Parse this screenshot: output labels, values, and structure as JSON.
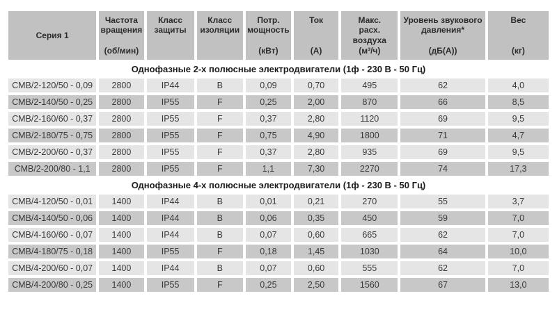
{
  "colors": {
    "page_bg": "#ffffff",
    "header_bg": "#c1c1c1",
    "row_light": "#e5e5e5",
    "row_dark": "#c8c8c8",
    "header_text": "#2b2b2b",
    "section_text": "#1c1c1c",
    "cell_text": "#3a3a3a"
  },
  "table": {
    "columns": [
      {
        "label": "Серия 1",
        "unit": ""
      },
      {
        "label": "Частота\nвращения",
        "unit": "(об/мин)"
      },
      {
        "label": "Класс\nзащиты",
        "unit": ""
      },
      {
        "label": "Класс\nизоляции",
        "unit": ""
      },
      {
        "label": "Потр.\nмощность",
        "unit": "(кВт)"
      },
      {
        "label": "Ток",
        "unit": "(А)"
      },
      {
        "label": "Макс.\nрасх.\nвоздуха",
        "unit": "(м³/ч)"
      },
      {
        "label": "Уровень звукового\nдавления*",
        "unit": "(дБ(А))"
      },
      {
        "label": "Вес",
        "unit": "(кг)"
      }
    ],
    "sections": [
      {
        "title": "Однофазные 2-х полюсные электродвигатели (1ф - 230 В - 50 Гц)",
        "rows": [
          [
            "СМВ/2-120/50 - 0,09",
            "2800",
            "IP44",
            "B",
            "0,09",
            "0,70",
            "495",
            "62",
            "4,0"
          ],
          [
            "СМВ/2-140/50 - 0,25",
            "2800",
            "IP55",
            "F",
            "0,25",
            "2,00",
            "870",
            "66",
            "8,5"
          ],
          [
            "СМВ/2-160/60 - 0,37",
            "2800",
            "IP55",
            "F",
            "0,37",
            "2,80",
            "1120",
            "69",
            "9,5"
          ],
          [
            "СМВ/2-180/75 - 0,75",
            "2800",
            "IP55",
            "F",
            "0,75",
            "4,90",
            "1800",
            "71",
            "4,7"
          ],
          [
            "СМВ/2-200/60 - 0,37",
            "2800",
            "IP55",
            "F",
            "0,37",
            "2,80",
            "935",
            "69",
            "9,5"
          ],
          [
            "СМВ/2-200/80 - 1,1",
            "2800",
            "IP55",
            "F",
            "1,1",
            "7,30",
            "2270",
            "74",
            "17,3"
          ]
        ]
      },
      {
        "title": "Однофазные 4-х полюсные электродвигатели (1ф - 230 В - 50 Гц)",
        "rows": [
          [
            "СМВ/4-120/50 - 0,01",
            "1400",
            "IP44",
            "B",
            "0,01",
            "0,21",
            "270",
            "55",
            "3,7"
          ],
          [
            "СМВ/4-140/50 - 0,06",
            "1400",
            "IP44",
            "B",
            "0,06",
            "0,35",
            "450",
            "59",
            "7,0"
          ],
          [
            "СМВ/4-160/60 - 0,07",
            "1400",
            "IP44",
            "B",
            "0,07",
            "0,60",
            "665",
            "62",
            "7,0"
          ],
          [
            "СМВ/4-180/75 - 0,18",
            "1400",
            "IP55",
            "F",
            "0,18",
            "1,45",
            "1030",
            "64",
            "10,0"
          ],
          [
            "СМВ/4-200/60 - 0,07",
            "1400",
            "IP44",
            "B",
            "0,07",
            "0,60",
            "555",
            "62",
            "7,0"
          ],
          [
            "СМВ/4-200/80 - 0,25",
            "1400",
            "IP55",
            "F",
            "0,25",
            "2,50",
            "1560",
            "67",
            "13,0"
          ]
        ]
      }
    ]
  }
}
